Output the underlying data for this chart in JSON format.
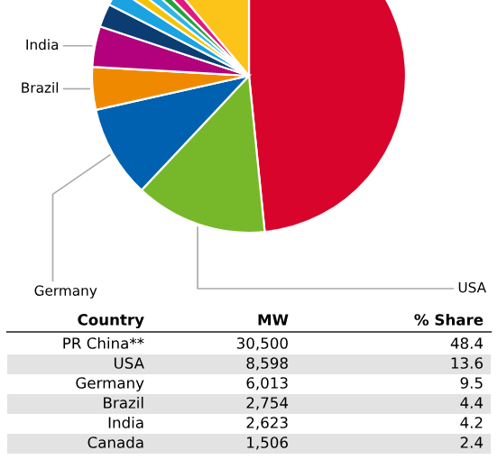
{
  "chart_data": [
    {
      "type": "pie",
      "categories": [
        null,
        "USA",
        "Germany",
        "Brazil",
        "India",
        null,
        null,
        null,
        null,
        null,
        null,
        null
      ],
      "values": [
        48.4,
        13.6,
        9.5,
        4.4,
        4.2,
        2.4,
        1.8,
        1.1,
        1.1,
        1.0,
        1.4,
        11.1
      ],
      "colors": [
        "#d9042b",
        "#76b82a",
        "#0061b0",
        "#ef8a00",
        "#b3007c",
        "#0b3d72",
        "#1aa3e0",
        "#f5c400",
        "#2cb5e8",
        "#23a23a",
        "#e5177e",
        "#fcc318"
      ]
    },
    {
      "type": "other",
      "xlabel": "Country",
      "categories": [
        "PR China**",
        "USA",
        "Germany",
        "Brazil",
        "India",
        "Canada"
      ],
      "series": [
        {
          "name": "MW",
          "values": [
            30500,
            8598,
            6013,
            2754,
            2623,
            1506
          ],
          "value_labels": [
            "30,500",
            "8,598",
            "6,013",
            "2,754",
            "2,623",
            "1,506"
          ]
        },
        {
          "name": "% Share",
          "values": [
            48.4,
            13.6,
            9.5,
            4.4,
            4.2,
            2.4
          ],
          "value_labels": [
            "48.4",
            "13.6",
            "9.5",
            "4.4",
            "4.2",
            "2.4"
          ]
        }
      ]
    }
  ]
}
